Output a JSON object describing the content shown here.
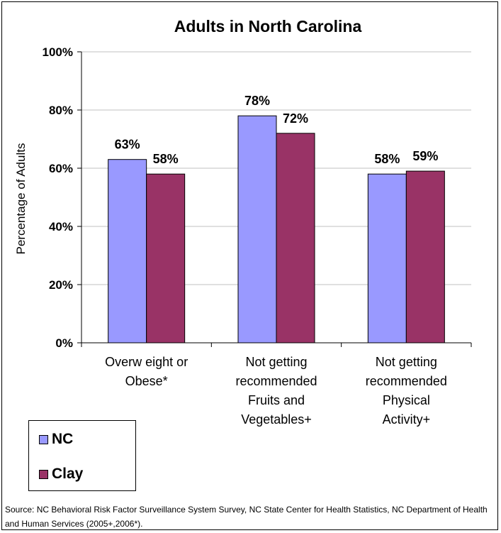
{
  "chart_data": {
    "type": "bar",
    "title": "Adults in North Carolina",
    "ylabel": "Percentage of Adults",
    "xlabel": "",
    "ylim": [
      0,
      100
    ],
    "yticks": [
      0,
      20,
      40,
      60,
      80,
      100
    ],
    "ytick_labels": [
      "0%",
      "20%",
      "40%",
      "60%",
      "80%",
      "100%"
    ],
    "categories": [
      [
        "Overw eight or",
        "Obese*"
      ],
      [
        "Not getting",
        "recommended",
        "Fruits and",
        "Vegetables+"
      ],
      [
        "Not getting",
        "recommended",
        "Physical",
        "Activity+"
      ]
    ],
    "series": [
      {
        "name": "NC",
        "color": "#9999ff",
        "values": [
          63,
          78,
          58
        ],
        "labels": [
          "63%",
          "78%",
          "58%"
        ]
      },
      {
        "name": "Clay",
        "color": "#993366",
        "values": [
          58,
          72,
          59
        ],
        "labels": [
          "58%",
          "72%",
          "59%"
        ]
      }
    ],
    "grid": true,
    "legend_placement": "bottom-left"
  },
  "source": "Source: NC Behavioral Risk Factor Surveillance System Survey, NC State Center for Health Statistics, NC Department of Health and Human Services (2005+,2006*)."
}
